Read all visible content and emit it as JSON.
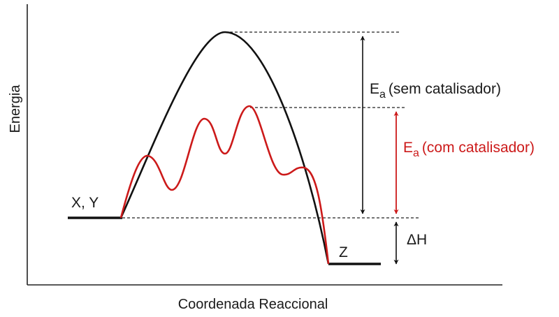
{
  "diagram": {
    "axis_x_label": "Coordenada Reaccional",
    "axis_y_label": "Energia",
    "reactants_label": "X, Y",
    "products_label": "Z",
    "ea_uncatalyzed": {
      "symbol": "E",
      "subscript": "a",
      "text": "(sem catalisador)"
    },
    "ea_catalyzed": {
      "symbol": "E",
      "subscript": "a",
      "text": "(com catalisador)"
    },
    "delta_h_label": "ΔH"
  },
  "colors": {
    "uncatalyzed_curve": "#111111",
    "catalyzed_curve": "#cc1a1a",
    "axes": "#222222"
  }
}
